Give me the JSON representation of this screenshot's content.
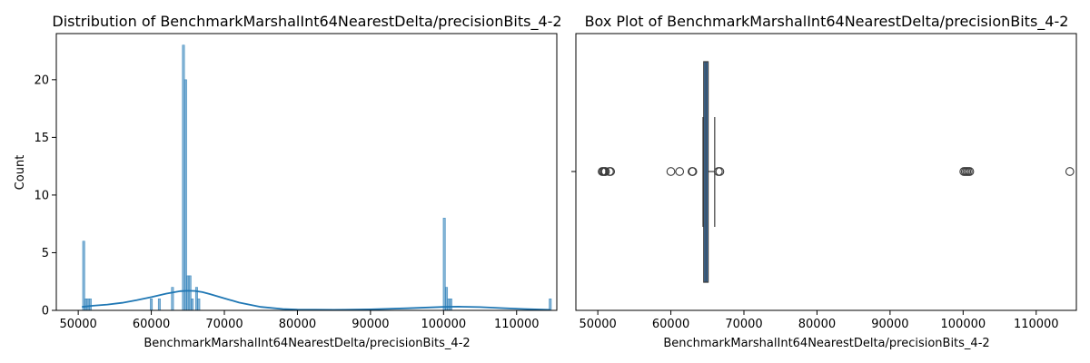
{
  "chart_data": [
    {
      "type": "histogram",
      "title": "Distribution of BenchmarkMarshalInt64NearestDelta/precisionBits_4-2",
      "xlabel": "BenchmarkMarshalInt64NearestDelta/precisionBits_4-2",
      "ylabel": "Count",
      "xlim": [
        47000,
        115500
      ],
      "ylim": [
        0,
        24
      ],
      "xticks": [
        50000,
        60000,
        70000,
        80000,
        90000,
        100000,
        110000
      ],
      "yticks": [
        0,
        5,
        10,
        15,
        20
      ],
      "bins": [
        {
          "x": 50750,
          "count": 6
        },
        {
          "x": 51050,
          "count": 1
        },
        {
          "x": 51350,
          "count": 1
        },
        {
          "x": 51650,
          "count": 1
        },
        {
          "x": 60000,
          "count": 1
        },
        {
          "x": 61100,
          "count": 1
        },
        {
          "x": 62900,
          "count": 2
        },
        {
          "x": 64400,
          "count": 23
        },
        {
          "x": 64700,
          "count": 20
        },
        {
          "x": 65000,
          "count": 3
        },
        {
          "x": 65300,
          "count": 3
        },
        {
          "x": 65600,
          "count": 1
        },
        {
          "x": 66200,
          "count": 2
        },
        {
          "x": 66500,
          "count": 1
        },
        {
          "x": 100100,
          "count": 8
        },
        {
          "x": 100400,
          "count": 2
        },
        {
          "x": 100700,
          "count": 1
        },
        {
          "x": 101000,
          "count": 1
        },
        {
          "x": 114600,
          "count": 1
        }
      ],
      "kde": {
        "x": [
          50500,
          52000,
          54000,
          56000,
          58000,
          60000,
          62000,
          64000,
          65000,
          66000,
          67000,
          68000,
          70000,
          72000,
          75000,
          78000,
          80000,
          85000,
          90000,
          95000,
          100000,
          102000,
          105000,
          108000,
          111000,
          114600
        ],
        "y": [
          0.3,
          0.4,
          0.5,
          0.65,
          0.88,
          1.15,
          1.45,
          1.67,
          1.7,
          1.68,
          1.58,
          1.42,
          1.05,
          0.68,
          0.3,
          0.12,
          0.07,
          0.05,
          0.09,
          0.18,
          0.3,
          0.32,
          0.28,
          0.2,
          0.12,
          0.05
        ]
      }
    },
    {
      "type": "box",
      "title": "Box Plot of BenchmarkMarshalInt64NearestDelta/precisionBits_4-2",
      "xlabel": "BenchmarkMarshalInt64NearestDelta/precisionBits_4-2",
      "xlim": [
        47000,
        115500
      ],
      "xticks": [
        50000,
        60000,
        70000,
        80000,
        90000,
        100000,
        110000
      ],
      "q1": 64500,
      "median": 64800,
      "q3": 65100,
      "whisker_low": 64400,
      "whisker_high": 66000,
      "outliers": [
        50600,
        50750,
        50900,
        51050,
        51600,
        51750,
        60000,
        61200,
        62900,
        63000,
        66500,
        66700,
        100100,
        100300,
        100500,
        100700,
        100900,
        114600
      ]
    }
  ]
}
